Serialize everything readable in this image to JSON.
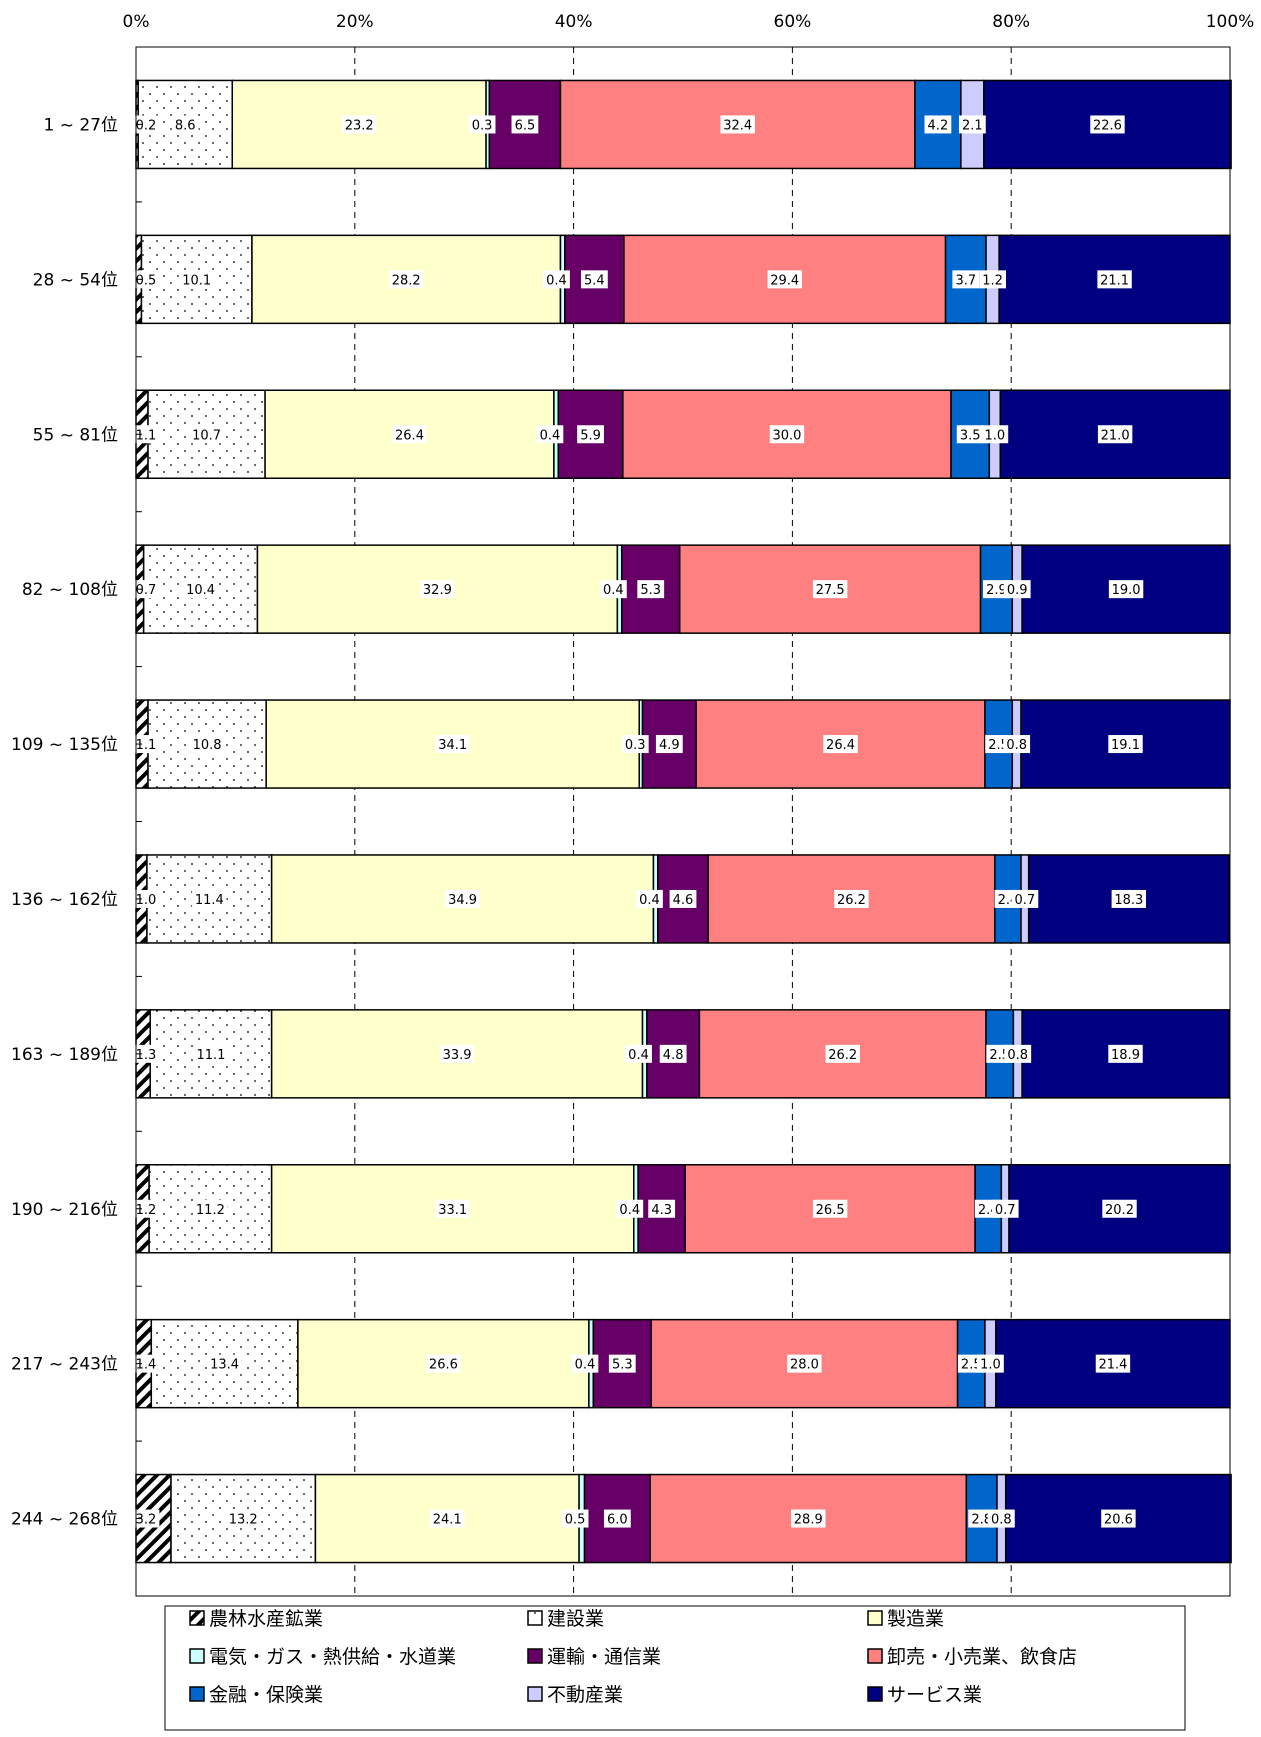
{
  "chart_data": {
    "type": "bar",
    "orientation": "horizontal",
    "stacked": "percent",
    "xlim": [
      0,
      100
    ],
    "x_ticks": [
      "0%",
      "20%",
      "40%",
      "60%",
      "80%",
      "100%"
    ],
    "grid": "vertical dashed",
    "legend_position": "bottom",
    "categories": [
      "1 ~ 27位",
      "28 ~ 54位",
      "55 ~ 81位",
      "82 ~ 108位",
      "109 ~ 135位",
      "136 ~ 162位",
      "163 ~ 189位",
      "190 ~ 216位",
      "217 ~ 243位",
      "244 ~ 268位"
    ],
    "series": [
      {
        "name": "農林水産鉱業",
        "color": "#ffffff",
        "pattern": "diagonal-stripe",
        "values": [
          0.2,
          0.5,
          1.1,
          0.7,
          1.1,
          1.0,
          1.3,
          1.2,
          1.4,
          3.2
        ],
        "labels": [
          "0.2",
          "0.5",
          "1.1",
          "0.7",
          "1.1",
          "1.0",
          "1.3",
          "1.2",
          "1.4",
          "3.2"
        ]
      },
      {
        "name": "建設業",
        "color": "#ffffff",
        "pattern": "dots",
        "values": [
          8.6,
          10.1,
          10.7,
          10.4,
          10.8,
          11.4,
          11.1,
          11.2,
          13.4,
          13.2
        ],
        "labels": [
          "8.6",
          "10.1",
          "10.7",
          "10.4",
          "10.8",
          "11.4",
          "11.1",
          "11.2",
          "13.4",
          "13.2"
        ]
      },
      {
        "name": "製造業",
        "color": "#ffffcc",
        "values": [
          23.2,
          28.2,
          26.4,
          32.9,
          34.1,
          34.9,
          33.9,
          33.1,
          26.6,
          24.1
        ],
        "labels": [
          "23.2",
          "28.2",
          "26.4",
          "32.9",
          "34.1",
          "34.9",
          "33.9",
          "33.1",
          "26.6",
          "24.1"
        ]
      },
      {
        "name": "電気・ガス・熱供給・水道業",
        "color": "#ccffff",
        "values": [
          0.3,
          0.4,
          0.4,
          0.4,
          0.3,
          0.4,
          0.4,
          0.4,
          0.4,
          0.5
        ],
        "labels": [
          "0.3",
          "0.4",
          "0.4",
          "0.4",
          "0.3",
          "0.4",
          "0.4",
          "0.4",
          "0.4",
          "0.5"
        ]
      },
      {
        "name": "運輸・通信業",
        "color": "#660066",
        "values": [
          6.5,
          5.4,
          5.9,
          5.3,
          4.9,
          4.6,
          4.8,
          4.3,
          5.3,
          6.0
        ],
        "labels": [
          "6.5",
          "5.4",
          "5.9",
          "5.3",
          "4.9",
          "4.6",
          "4.8",
          "4.3",
          "5.3",
          "6.0"
        ]
      },
      {
        "name": "卸売・小売業、飲食店",
        "color": "#ff8080",
        "values": [
          32.4,
          29.4,
          30.0,
          27.5,
          26.4,
          26.2,
          26.2,
          26.5,
          28.0,
          28.9
        ],
        "labels": [
          "32.4",
          "29.4",
          "30.0",
          "27.5",
          "26.4",
          "26.2",
          "26.2",
          "26.5",
          "28.0",
          "28.9"
        ]
      },
      {
        "name": "金融・保険業",
        "color": "#0066cc",
        "values": [
          4.2,
          3.7,
          3.5,
          2.9,
          2.5,
          2.4,
          2.5,
          2.4,
          2.5,
          2.8
        ],
        "labels": [
          "4.2",
          "3.7",
          "3.5",
          "2.9",
          "2.5",
          "2.4",
          "2.5",
          "2.4",
          "2.5",
          "2.8"
        ]
      },
      {
        "name": "不動産業",
        "color": "#ccccff",
        "values": [
          2.1,
          1.2,
          1.0,
          0.9,
          0.8,
          0.7,
          0.8,
          0.7,
          1.0,
          0.8
        ],
        "labels": [
          "2.1",
          "1.2",
          "1.0",
          "0.9",
          "0.8",
          "0.7",
          "0.8",
          "0.7",
          "1.0",
          "0.8"
        ]
      },
      {
        "name": "サービス業",
        "color": "#000080",
        "values": [
          22.6,
          21.1,
          21.0,
          19.0,
          19.1,
          18.3,
          18.9,
          20.2,
          21.4,
          20.6
        ],
        "labels": [
          "22.6",
          "21.1",
          "21.0",
          "19.0",
          "19.1",
          "18.3",
          "18.9",
          "20.2",
          "21.4",
          "20.6"
        ]
      }
    ]
  }
}
